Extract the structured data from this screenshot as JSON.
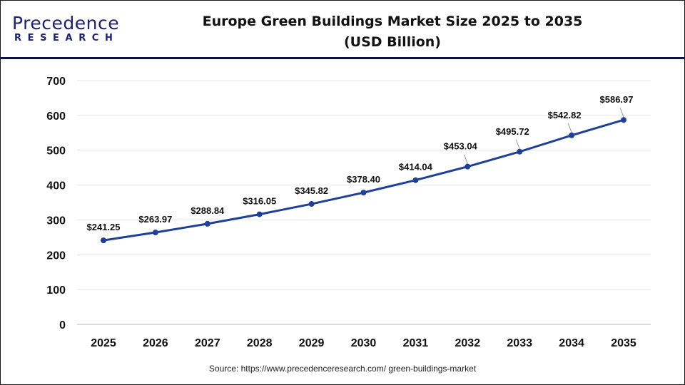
{
  "logo": {
    "main": "Precedence",
    "sub": "RESEARCH"
  },
  "header": {
    "title_line1": "Europe Green Buildings Market Size 2025 to 2035",
    "title_line2": "(USD Billion)"
  },
  "source": "Source: https://www.precedenceresearch.com/ green-buildings-market",
  "chart_data": {
    "type": "line",
    "title": "Europe Green Buildings Market Size 2025 to 2035 (USD Billion)",
    "categories": [
      "2025",
      "2026",
      "2027",
      "2028",
      "2029",
      "2030",
      "2031",
      "2032",
      "2033",
      "2034",
      "2035"
    ],
    "values": [
      241.25,
      263.97,
      288.84,
      316.05,
      345.82,
      378.4,
      414.04,
      453.04,
      495.72,
      542.82,
      586.97
    ],
    "data_labels": [
      "$241.25",
      "$263.97",
      "$288.84",
      "$316.05",
      "$345.82",
      "$378.40",
      "$414.04",
      "$453.04",
      "$495.72",
      "$542.82",
      "$586.97"
    ],
    "yticks": [
      "0",
      "100",
      "200",
      "300",
      "400",
      "500",
      "600",
      "700"
    ],
    "ylim": [
      0,
      700
    ],
    "grid": true,
    "line_color": "#1f3f9a"
  }
}
